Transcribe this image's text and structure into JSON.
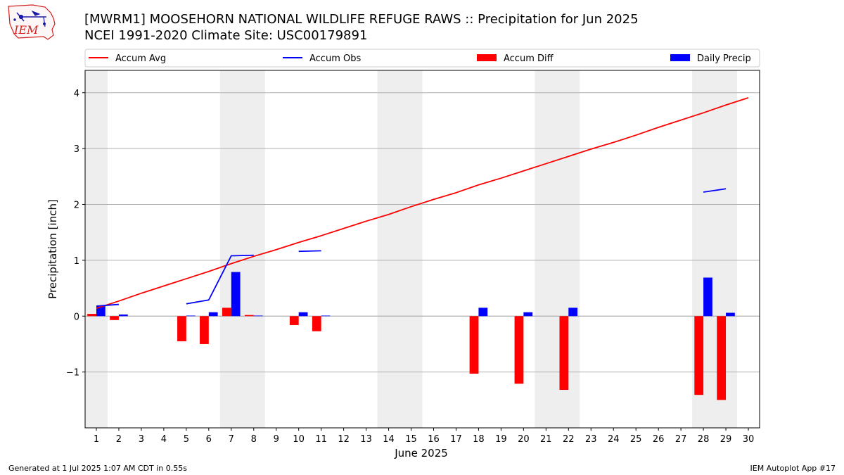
{
  "header": {
    "title_line1": "[MWRM1] MOOSEHORN NATIONAL WILDLIFE REFUGE RAWS :: Precipitation for Jun 2025",
    "title_line2": "NCEI 1991-2020 Climate Site: USC00179891",
    "logo_text": "IEM"
  },
  "footer": {
    "generated": "Generated at 1 Jul 2025 1:07 AM CDT in 0.55s",
    "app": "IEM Autoplot App #17"
  },
  "chart_data": {
    "type": "bar",
    "xlabel": "June 2025",
    "ylabel": "Precipitation [inch]",
    "xlim": [
      0.5,
      30.5
    ],
    "ylim": [
      -2.0,
      4.4
    ],
    "yticks": [
      -1,
      0,
      1,
      2,
      3,
      4
    ],
    "ytick_labels": [
      "−1",
      "0",
      "1",
      "2",
      "3",
      "4"
    ],
    "x_ticks": [
      1,
      2,
      3,
      4,
      5,
      6,
      7,
      8,
      9,
      10,
      11,
      12,
      13,
      14,
      15,
      16,
      17,
      18,
      19,
      20,
      21,
      22,
      23,
      24,
      25,
      26,
      27,
      28,
      29,
      30
    ],
    "grid": "horizontal",
    "legend_position": "top",
    "weekend_shading": [
      [
        0.5,
        1.5
      ],
      [
        6.5,
        8.5
      ],
      [
        13.5,
        15.5
      ],
      [
        20.5,
        22.5
      ],
      [
        27.5,
        29.5
      ]
    ],
    "series": [
      {
        "name": "Accum Avg",
        "type": "line",
        "color": "#ff0000",
        "x": [
          1,
          2,
          3,
          4,
          5,
          6,
          7,
          8,
          9,
          10,
          11,
          12,
          13,
          14,
          15,
          16,
          17,
          18,
          19,
          20,
          21,
          22,
          23,
          24,
          25,
          26,
          27,
          28,
          29,
          30
        ],
        "values": [
          0.14,
          0.27,
          0.41,
          0.54,
          0.67,
          0.8,
          0.94,
          1.07,
          1.19,
          1.32,
          1.44,
          1.57,
          1.7,
          1.82,
          1.96,
          2.09,
          2.21,
          2.35,
          2.47,
          2.6,
          2.73,
          2.86,
          2.99,
          3.11,
          3.24,
          3.38,
          3.51,
          3.64,
          3.78,
          3.91
        ]
      },
      {
        "name": "Accum Obs",
        "type": "line",
        "color": "#0000ff",
        "x": [
          1,
          2,
          3,
          4,
          5,
          6,
          7,
          8,
          9,
          10,
          11,
          12,
          13,
          14,
          15,
          16,
          17,
          18,
          19,
          20,
          21,
          22,
          23,
          24,
          25,
          26,
          27,
          28,
          29,
          30
        ],
        "values": [
          0.18,
          0.21,
          null,
          null,
          0.22,
          0.29,
          1.08,
          1.09,
          null,
          1.16,
          1.17,
          null,
          null,
          null,
          null,
          null,
          null,
          null,
          null,
          null,
          null,
          null,
          null,
          null,
          null,
          null,
          null,
          2.22,
          2.28,
          null
        ]
      },
      {
        "name": "Accum Diff",
        "type": "bar",
        "color": "#ff0000",
        "offset": -0.2,
        "x": [
          1,
          2,
          5,
          6,
          7,
          8,
          10,
          11,
          18,
          20,
          22,
          28,
          29
        ],
        "values": [
          0.04,
          -0.07,
          -0.45,
          -0.5,
          0.15,
          0.02,
          -0.16,
          -0.27,
          -1.03,
          -1.21,
          -1.32,
          -1.41,
          -1.5
        ]
      },
      {
        "name": "Daily Precip",
        "type": "bar",
        "color": "#0000ff",
        "offset": 0.2,
        "x": [
          1,
          2,
          5,
          6,
          7,
          8,
          10,
          11,
          18,
          20,
          22,
          28,
          29
        ],
        "values": [
          0.18,
          0.03,
          0.01,
          0.07,
          0.79,
          0.01,
          0.07,
          0.01,
          0.15,
          0.07,
          0.15,
          0.69,
          0.06
        ]
      }
    ]
  }
}
